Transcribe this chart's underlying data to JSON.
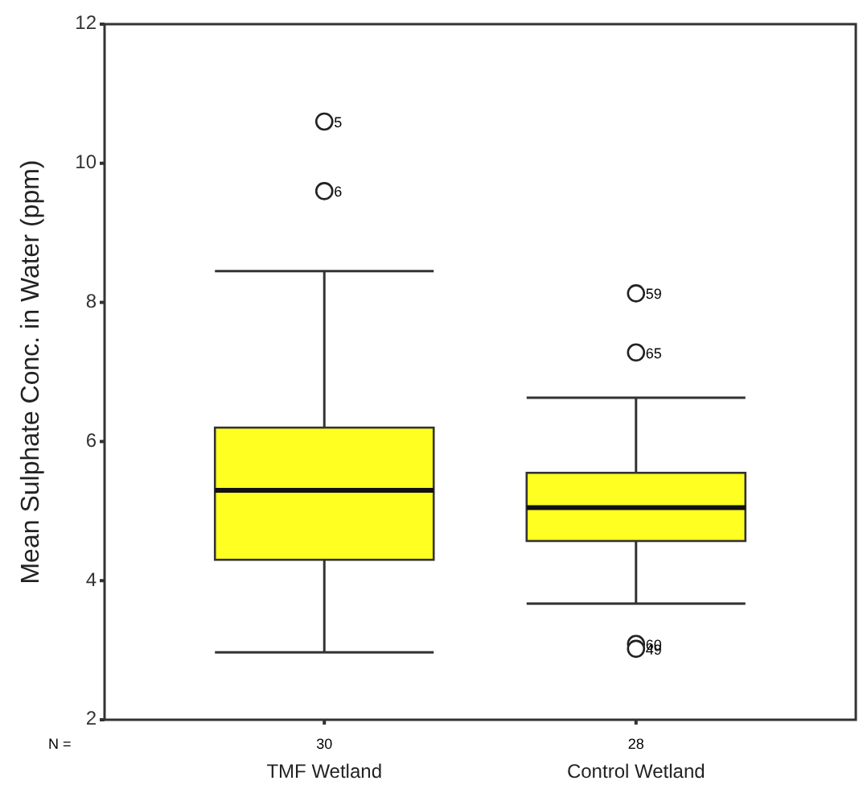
{
  "chart_data": {
    "type": "box",
    "ylabel": "Mean Sulphate Conc. in Water (ppm)",
    "categories": [
      "TMF Wetland",
      "Control Wetland"
    ],
    "series": [
      {
        "color": "#ffff22",
        "boxes": [
          {
            "low": 2.97,
            "q1": 4.3,
            "median": 5.3,
            "q3": 6.2,
            "high": 8.45,
            "outliers": [
              10.6,
              9.6
            ]
          },
          {
            "low": 3.67,
            "q1": 4.57,
            "median": 5.05,
            "q3": 5.55,
            "high": 6.63,
            "outliers": [
              8.13,
              7.28,
              3.09,
              3.02
            ]
          }
        ]
      }
    ],
    "ylim": [
      2,
      12
    ],
    "yticks": [
      2,
      4,
      6,
      8,
      10,
      12
    ],
    "grid": false,
    "marker": "circle",
    "annotations": [
      "5",
      "6",
      "59",
      "65",
      "60",
      "49",
      "N =",
      "30",
      "28"
    ]
  }
}
